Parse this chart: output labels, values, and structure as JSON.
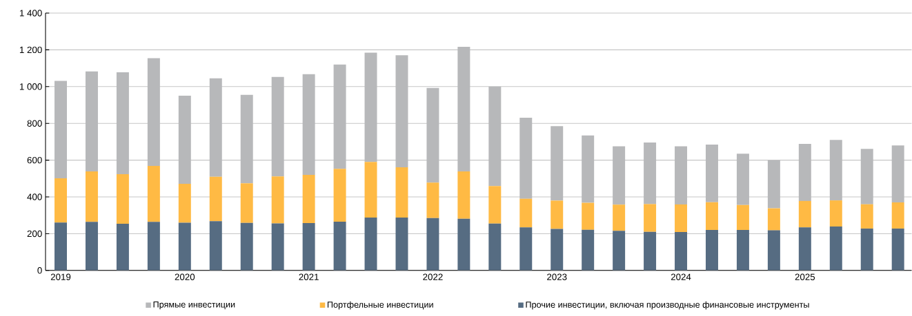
{
  "chart_data": {
    "type": "bar",
    "stacked": true,
    "categories": [
      "2019",
      null,
      null,
      null,
      "2020",
      null,
      null,
      null,
      "2021",
      null,
      null,
      null,
      "2022",
      null,
      null,
      null,
      "2023",
      null,
      null,
      null,
      "2024",
      null,
      null,
      null,
      "2025",
      null,
      null,
      null
    ],
    "series": [
      {
        "name": "Прочие инвестиции, включая производные финансовые инструменты",
        "color": "#566c82",
        "values": [
          261,
          264,
          254,
          264,
          260,
          268,
          259,
          256,
          258,
          265,
          288,
          288,
          285,
          281,
          255,
          234,
          226,
          221,
          216,
          210,
          209,
          220,
          220,
          218,
          234,
          239,
          228,
          228
        ]
      },
      {
        "name": "Портфельные инвестиции",
        "color": "#ffba44",
        "values": [
          240,
          275,
          270,
          305,
          211,
          242,
          215,
          255,
          262,
          288,
          302,
          273,
          193,
          258,
          204,
          156,
          154,
          147,
          142,
          151,
          150,
          151,
          136,
          120,
          144,
          142,
          132,
          142
        ]
      },
      {
        "name": "Прямые инвестиции",
        "color": "#b7b8ba",
        "values": [
          530,
          544,
          554,
          586,
          480,
          535,
          481,
          542,
          548,
          567,
          595,
          610,
          515,
          677,
          541,
          441,
          405,
          366,
          317,
          335,
          316,
          314,
          279,
          261,
          310,
          329,
          301,
          310
        ]
      }
    ],
    "ylim": [
      0,
      1400
    ],
    "yticks": [
      0,
      200,
      400,
      600,
      800,
      {
        "value": 1000,
        "label": "1 000"
      },
      {
        "value": 1200,
        "label": "1 200"
      },
      {
        "value": 1400,
        "label": "1 400"
      }
    ],
    "grid": "y",
    "legend": "bottom"
  }
}
